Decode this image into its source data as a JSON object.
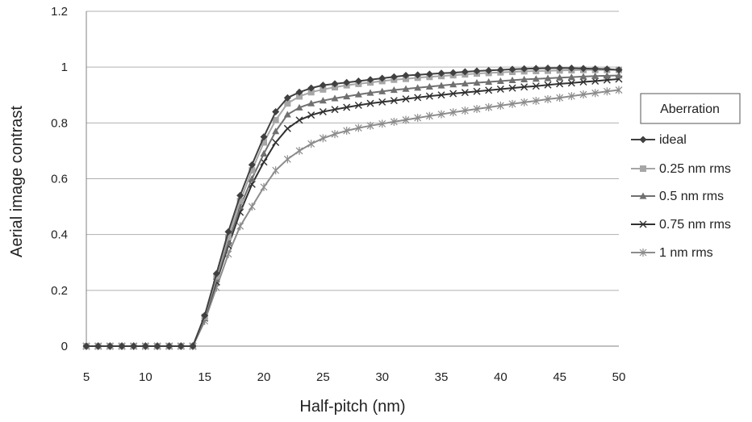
{
  "chart_data": {
    "type": "line",
    "title": "",
    "xlabel": "Half-pitch (nm)",
    "ylabel": "Aerial image contrast",
    "xlim": [
      5,
      50
    ],
    "ylim": [
      0,
      1.2
    ],
    "x_ticks": [
      "5",
      "10",
      "15",
      "20",
      "25",
      "30",
      "35",
      "40",
      "45",
      "50"
    ],
    "y_ticks": [
      "0",
      "0.2",
      "0.4",
      "0.6",
      "0.8",
      "1",
      "1.2"
    ],
    "grid": "horizontal",
    "legend": {
      "title": "Aberration",
      "position": "right"
    },
    "x": [
      5,
      6,
      7,
      8,
      9,
      10,
      11,
      12,
      13,
      14,
      15,
      16,
      17,
      18,
      19,
      20,
      21,
      22,
      23,
      24,
      25,
      26,
      27,
      28,
      29,
      30,
      31,
      32,
      33,
      34,
      35,
      36,
      37,
      38,
      39,
      40,
      41,
      42,
      43,
      44,
      45,
      46,
      47,
      48,
      49,
      50
    ],
    "series": [
      {
        "name": "ideal",
        "color": "#404040",
        "marker": "diamond",
        "values": [
          0,
          0,
          0,
          0,
          0,
          0,
          0,
          0,
          0,
          0,
          0.11,
          0.26,
          0.41,
          0.54,
          0.65,
          0.75,
          0.84,
          0.89,
          0.91,
          0.925,
          0.935,
          0.94,
          0.945,
          0.95,
          0.955,
          0.96,
          0.965,
          0.97,
          0.972,
          0.975,
          0.978,
          0.98,
          0.983,
          0.986,
          0.988,
          0.99,
          0.992,
          0.994,
          0.995,
          0.996,
          0.997,
          0.996,
          0.995,
          0.994,
          0.993,
          0.99
        ]
      },
      {
        "name": "0.25 nm rms",
        "color": "#a6a6a6",
        "marker": "square",
        "values": [
          0,
          0,
          0,
          0,
          0,
          0,
          0,
          0,
          0,
          0,
          0.105,
          0.25,
          0.39,
          0.52,
          0.63,
          0.73,
          0.81,
          0.87,
          0.895,
          0.91,
          0.92,
          0.928,
          0.935,
          0.94,
          0.945,
          0.95,
          0.955,
          0.958,
          0.962,
          0.965,
          0.968,
          0.971,
          0.974,
          0.977,
          0.979,
          0.981,
          0.983,
          0.985,
          0.986,
          0.987,
          0.988,
          0.989,
          0.99,
          0.99,
          0.99,
          0.99
        ]
      },
      {
        "name": "0.5 nm rms",
        "color": "#707070",
        "marker": "triangle",
        "values": [
          0,
          0,
          0,
          0,
          0,
          0,
          0,
          0,
          0,
          0,
          0.1,
          0.24,
          0.37,
          0.5,
          0.6,
          0.69,
          0.77,
          0.83,
          0.855,
          0.87,
          0.88,
          0.888,
          0.895,
          0.902,
          0.908,
          0.913,
          0.918,
          0.922,
          0.926,
          0.93,
          0.934,
          0.938,
          0.941,
          0.944,
          0.947,
          0.95,
          0.953,
          0.956,
          0.958,
          0.96,
          0.962,
          0.964,
          0.966,
          0.968,
          0.969,
          0.97
        ]
      },
      {
        "name": "0.75 nm rms",
        "color": "#303030",
        "marker": "x",
        "values": [
          0,
          0,
          0,
          0,
          0,
          0,
          0,
          0,
          0,
          0,
          0.1,
          0.23,
          0.36,
          0.48,
          0.58,
          0.66,
          0.73,
          0.78,
          0.81,
          0.828,
          0.84,
          0.848,
          0.856,
          0.863,
          0.87,
          0.875,
          0.88,
          0.886,
          0.891,
          0.896,
          0.9,
          0.905,
          0.909,
          0.913,
          0.917,
          0.921,
          0.925,
          0.929,
          0.932,
          0.936,
          0.94,
          0.943,
          0.947,
          0.95,
          0.954,
          0.957
        ]
      },
      {
        "name": "1 nm rms",
        "color": "#8c8c8c",
        "marker": "star",
        "values": [
          0,
          0,
          0,
          0,
          0,
          0,
          0,
          0,
          0,
          0,
          0.09,
          0.21,
          0.33,
          0.43,
          0.5,
          0.57,
          0.63,
          0.67,
          0.7,
          0.725,
          0.745,
          0.76,
          0.772,
          0.782,
          0.79,
          0.797,
          0.804,
          0.811,
          0.818,
          0.825,
          0.831,
          0.838,
          0.844,
          0.85,
          0.856,
          0.862,
          0.868,
          0.874,
          0.879,
          0.885,
          0.89,
          0.896,
          0.902,
          0.907,
          0.913,
          0.918
        ]
      }
    ]
  }
}
